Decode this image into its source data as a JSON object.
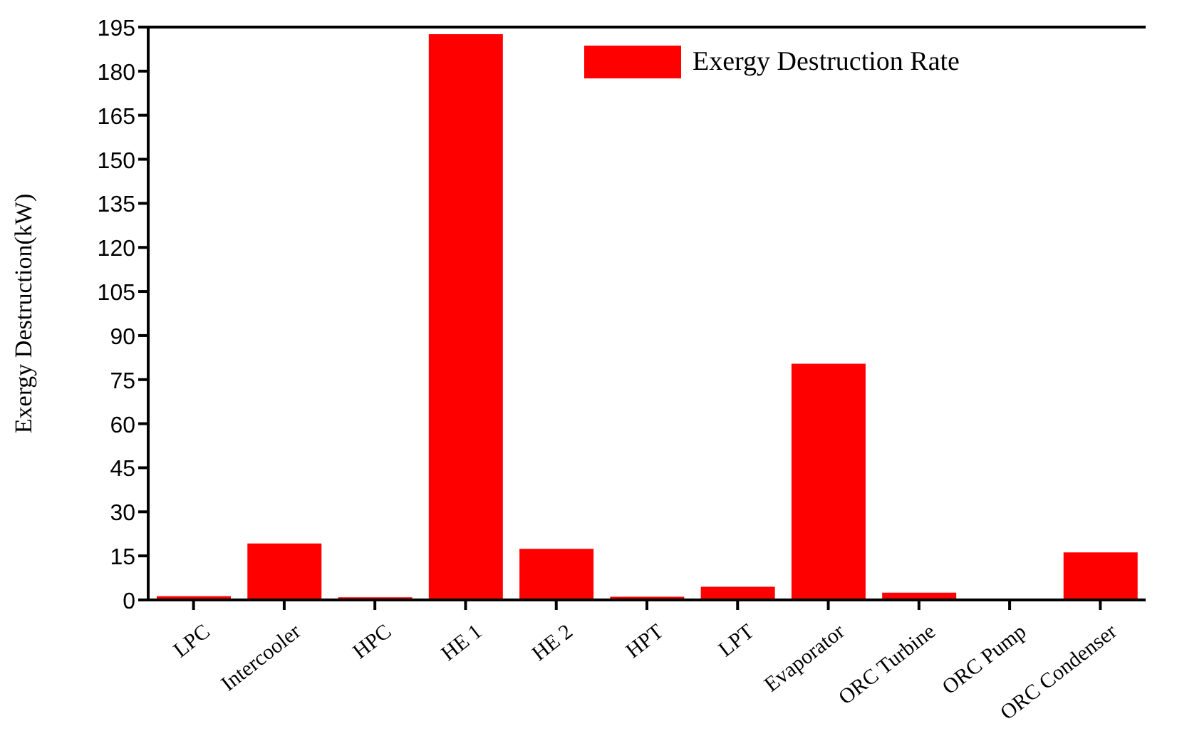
{
  "chart_data": {
    "type": "bar",
    "ylabel": "Exergy Destruction(kW)",
    "categories": [
      "LPC",
      "Intercooler",
      "HPC",
      "HE 1",
      "HE 2",
      "HPT",
      "LPT",
      "Evaporator",
      "ORC Turbine",
      "ORC Pump",
      "ORC Condenser"
    ],
    "series": [
      {
        "name": "Exergy Destruction Rate",
        "color": "#ff0000",
        "values": [
          1.3,
          19.2,
          0.9,
          192.6,
          17.4,
          1.1,
          4.5,
          80.4,
          2.5,
          0,
          16.2
        ]
      }
    ],
    "ylim": [
      0,
      195
    ],
    "yticks": [
      0,
      15,
      30,
      45,
      60,
      75,
      90,
      105,
      120,
      135,
      150,
      165,
      180,
      195
    ],
    "grid": false,
    "legend": "top right"
  }
}
